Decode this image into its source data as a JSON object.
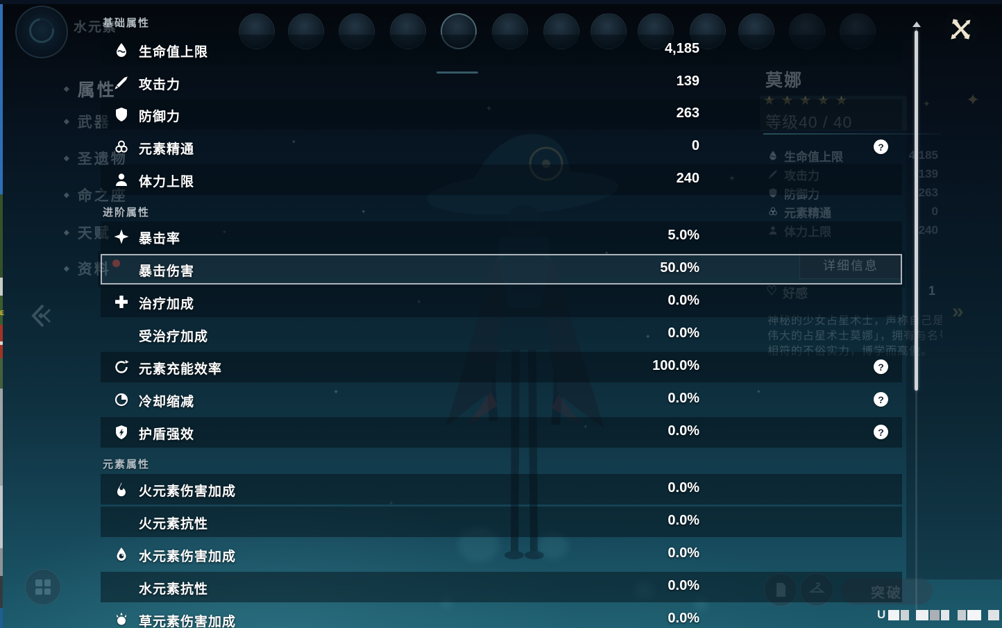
{
  "background": {
    "element_label": "水元素",
    "sidebar": {
      "items": [
        "属性",
        "武器",
        "圣遗物",
        "命之座",
        "天赋",
        "资料"
      ],
      "active_index": 0
    },
    "character_panel": {
      "name": "莫娜",
      "rarity": 5,
      "star_glyph": "★",
      "level_label": "等级40 / 40",
      "stats": [
        {
          "icon": "hp",
          "label": "生命值上限",
          "value": "4,185"
        },
        {
          "icon": "atk",
          "label": "攻击力",
          "value": "139"
        },
        {
          "icon": "def",
          "label": "防御力",
          "value": "263"
        },
        {
          "icon": "em",
          "label": "元素精通",
          "value": "0"
        },
        {
          "icon": "stamina",
          "label": "体力上限",
          "value": "240"
        }
      ],
      "details_button": "详细信息",
      "friendship_label": "好感",
      "friendship_value": "1",
      "description_lines": [
        "神秘的少女占星术士，声称自己是「",
        "伟大的占星术士莫娜」，拥有与名号",
        "相符的不俗实力，博学而高傲。"
      ]
    },
    "bottom_bar": {
      "ascend_button": "突破",
      "uid_prefix": "U",
      "uid_censored": true
    }
  },
  "overlay": {
    "help_glyph": "?",
    "sections": [
      {
        "title": "基础属性",
        "rows": [
          {
            "icon": "hp",
            "label": "生命值上限",
            "value": "4,185",
            "shaded": true
          },
          {
            "icon": "atk",
            "label": "攻击力",
            "value": "139"
          },
          {
            "icon": "def",
            "label": "防御力",
            "value": "263",
            "shaded": true
          },
          {
            "icon": "em",
            "label": "元素精通",
            "value": "0",
            "help": true
          },
          {
            "icon": "stamina",
            "label": "体力上限",
            "value": "240",
            "shaded": true
          }
        ]
      },
      {
        "title": "进阶属性",
        "rows": [
          {
            "icon": "crit",
            "label": "暴击率",
            "value": "5.0%",
            "shaded": true
          },
          {
            "icon": null,
            "label": "暴击伤害",
            "value": "50.0%",
            "selected": true
          },
          {
            "icon": "heal",
            "label": "治疗加成",
            "value": "0.0%",
            "shaded": true
          },
          {
            "icon": null,
            "label": "受治疗加成",
            "value": "0.0%"
          },
          {
            "icon": "er",
            "label": "元素充能效率",
            "value": "100.0%",
            "help": true,
            "shaded": true
          },
          {
            "icon": "cd",
            "label": "冷却缩减",
            "value": "0.0%",
            "help": true
          },
          {
            "icon": "shield",
            "label": "护盾强效",
            "value": "0.0%",
            "help": true,
            "shaded": true
          }
        ]
      },
      {
        "title": "元素属性",
        "rows": [
          {
            "icon": "pyro",
            "label": "火元素伤害加成",
            "value": "0.0%",
            "shaded": true
          },
          {
            "icon": null,
            "label": "火元素抗性",
            "value": "0.0%",
            "shaded": true
          },
          {
            "icon": "hydro",
            "label": "水元素伤害加成",
            "value": "0.0%"
          },
          {
            "icon": null,
            "label": "水元素抗性",
            "value": "0.0%",
            "shaded": true
          },
          {
            "icon": "dendro",
            "label": "草元素伤害加成",
            "value": "0.0%"
          }
        ]
      }
    ]
  }
}
